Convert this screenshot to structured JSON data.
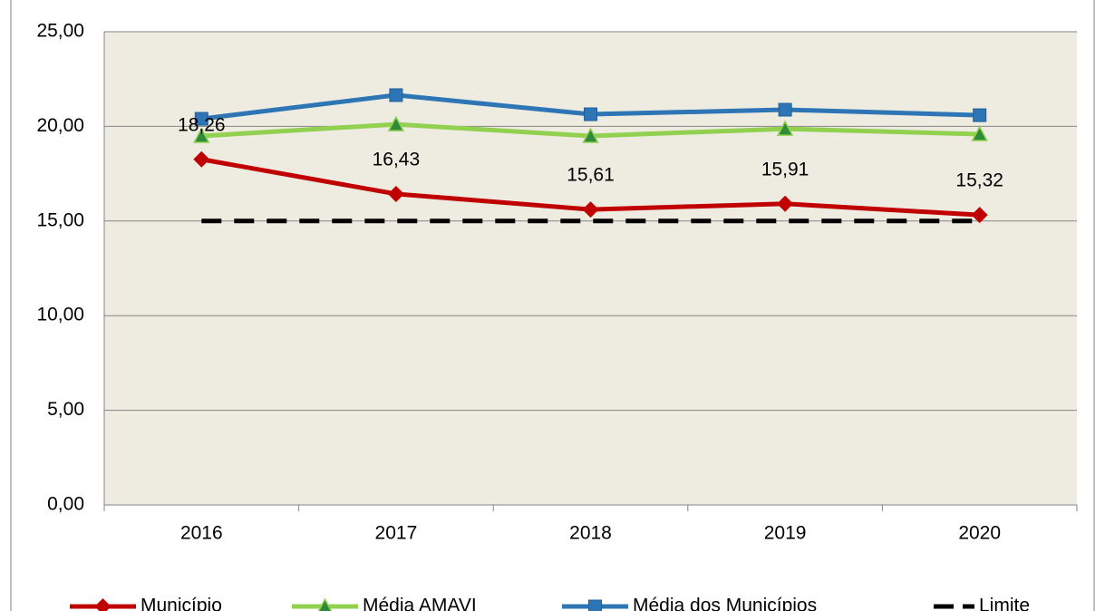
{
  "chart_data": {
    "type": "line",
    "categories": [
      "2016",
      "2017",
      "2018",
      "2019",
      "2020"
    ],
    "series": [
      {
        "name": "Município",
        "color": "#c00000",
        "marker": "diamond",
        "values": [
          18.26,
          16.43,
          15.61,
          15.91,
          15.32
        ],
        "value_labels": [
          "18,26",
          "16,43",
          "15,61",
          "15,91",
          "15,32"
        ]
      },
      {
        "name": "Média AMAVI",
        "color": "#92d050",
        "marker": "triangle",
        "values": [
          19.49,
          20.11,
          19.49,
          19.87,
          19.59
        ]
      },
      {
        "name": "Média dos Municípios",
        "color": "#2e75b6",
        "marker": "square",
        "values": [
          20.4,
          21.65,
          20.64,
          20.88,
          20.59
        ]
      },
      {
        "name": "Limite",
        "color": "#000000",
        "dash": true,
        "values": [
          15,
          15,
          15,
          15,
          15
        ]
      }
    ],
    "ylim": [
      0,
      25
    ],
    "yticks": [
      {
        "value": 0,
        "label": "0,00"
      },
      {
        "value": 5,
        "label": "5,00"
      },
      {
        "value": 10,
        "label": "10,00"
      },
      {
        "value": 15,
        "label": "15,00"
      },
      {
        "value": 20,
        "label": "20,00"
      },
      {
        "value": 25,
        "label": "25,00"
      }
    ],
    "grid": true,
    "legend": "bottom"
  }
}
